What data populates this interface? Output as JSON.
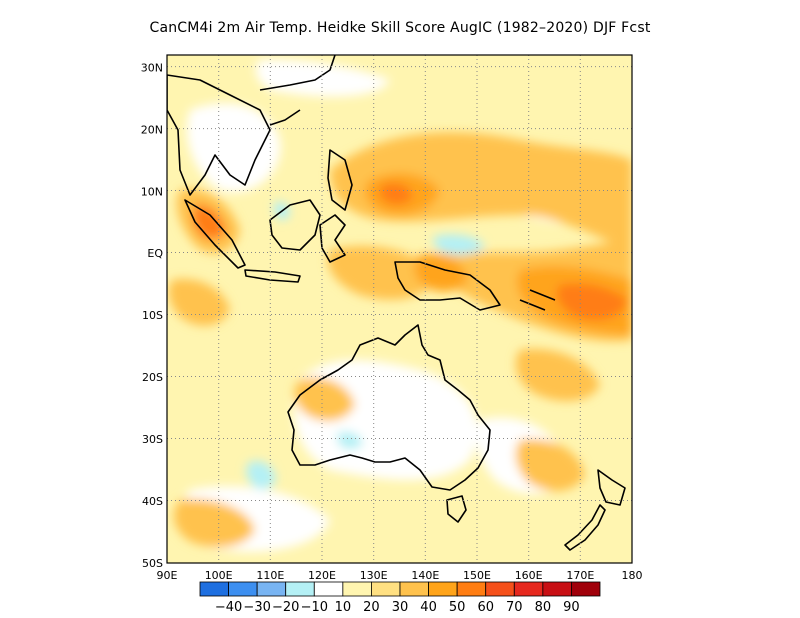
{
  "title": "CanCM4i  2m Air Temp. Heidke Skill Score AugIC (1982–2020) DJF Fcst",
  "map": {
    "lon_range": [
      90,
      180
    ],
    "lat_range": [
      -50,
      32
    ],
    "x_ticks": [
      "90E",
      "100E",
      "110E",
      "120E",
      "130E",
      "140E",
      "150E",
      "160E",
      "170E",
      "180"
    ],
    "y_ticks": [
      "30N",
      "20N",
      "10N",
      "EQ",
      "10S",
      "20S",
      "30S",
      "40S",
      "50S"
    ],
    "grid": "dotted"
  },
  "colorbar": {
    "colors": [
      "#1e6fe0",
      "#3d8ff0",
      "#78b4f2",
      "#b4f0f5",
      "#ffffff",
      "#fff5b0",
      "#ffe082",
      "#ffc24d",
      "#ffa41a",
      "#ff7d12",
      "#f5501a",
      "#e6281e",
      "#c80f14",
      "#a0000a"
    ],
    "labels": [
      "−40",
      "−30",
      "−20",
      "−10",
      "10",
      "20",
      "30",
      "40",
      "50",
      "60",
      "70",
      "80",
      "90"
    ]
  }
}
